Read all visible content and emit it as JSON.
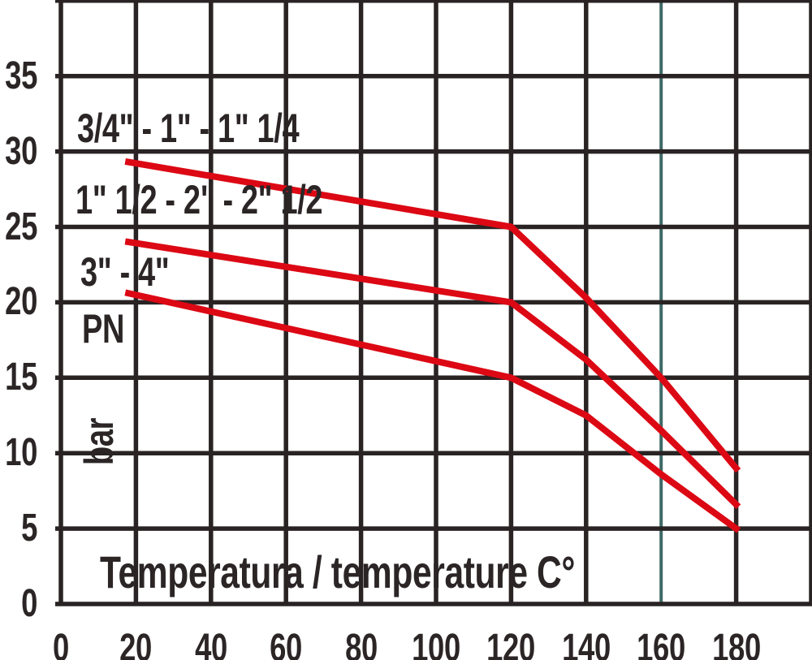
{
  "chart_data": {
    "type": "line",
    "title": "",
    "xlabel": "Temperatura / temperature C°",
    "ylabel": "PN",
    "y_unit": "bar",
    "xlim": [
      0,
      200
    ],
    "ylim": [
      0,
      40
    ],
    "x_ticks": [
      0,
      20,
      40,
      60,
      80,
      100,
      120,
      140,
      160,
      180
    ],
    "y_ticks": [
      0,
      5,
      10,
      15,
      20,
      25,
      30,
      35
    ],
    "x_grid_step": 20,
    "y_grid_step": 5,
    "grid": true,
    "legend_position": "inline-annotations",
    "series": [
      {
        "name": "3/4\" - 1\" - 1\" 1/4",
        "points": [
          [
            18,
            29.3
          ],
          [
            120,
            25
          ],
          [
            140,
            20.3
          ],
          [
            160,
            15
          ],
          [
            180,
            9
          ]
        ]
      },
      {
        "name": "1\" 1/2 - 2\" - 2\" 1/2",
        "points": [
          [
            18,
            24
          ],
          [
            120,
            20
          ],
          [
            140,
            16.2
          ],
          [
            160,
            11.5
          ],
          [
            180,
            6.6
          ]
        ]
      },
      {
        "name": "3\" - 4\"",
        "points": [
          [
            18,
            20.6
          ],
          [
            120,
            15
          ],
          [
            140,
            12.5
          ],
          [
            160,
            8.6
          ],
          [
            180,
            5
          ]
        ]
      }
    ],
    "colors": {
      "line": "#dc0814",
      "grid": "#292324",
      "accent_gridline": "#3f6a66",
      "text": "#2b2526"
    },
    "accent_gridline_x": 160
  }
}
